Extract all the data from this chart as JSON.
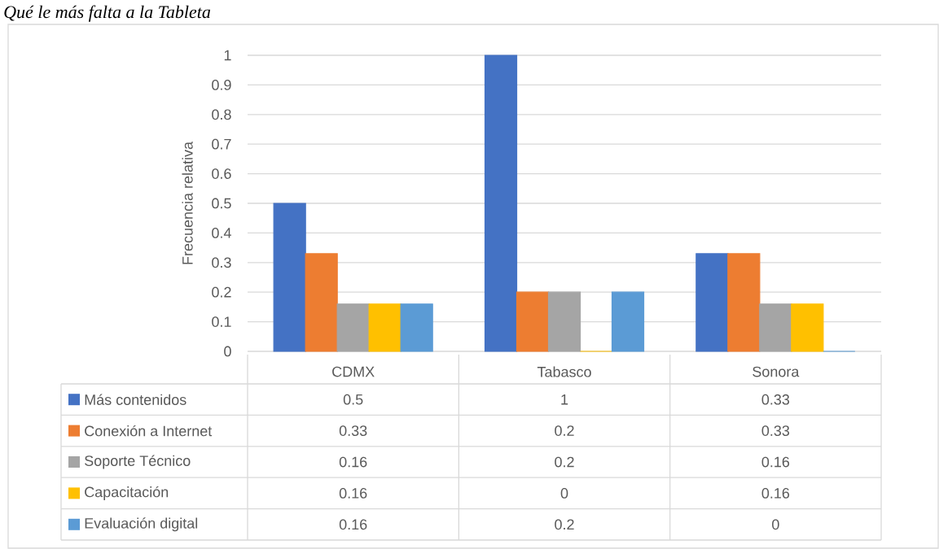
{
  "chart_data": {
    "type": "bar",
    "title": "Qué le más falta a la Tableta",
    "ylabel": "Frecuencia relativa",
    "categories": [
      "CDMX",
      "Tabasco",
      "Sonora"
    ],
    "series": [
      {
        "name": "Más contenidos",
        "color": "#4472c4",
        "values": [
          0.5,
          1,
          0.33
        ]
      },
      {
        "name": "Conexión a Internet",
        "color": "#ed7d31",
        "values": [
          0.33,
          0.2,
          0.33
        ]
      },
      {
        "name": "Soporte Técnico",
        "color": "#a5a5a5",
        "values": [
          0.16,
          0.2,
          0.16
        ]
      },
      {
        "name": "Capacitación",
        "color": "#ffc000",
        "values": [
          0.16,
          0,
          0.16
        ]
      },
      {
        "name": "Evaluación digital",
        "color": "#5b9bd5",
        "values": [
          0.16,
          0.2,
          0
        ]
      }
    ],
    "ylim": [
      0,
      1
    ],
    "yticks": [
      0,
      0.1,
      0.2,
      0.3,
      0.4,
      0.5,
      0.6,
      0.7,
      0.8,
      0.9,
      1
    ],
    "grid": "y",
    "legend": "bottom",
    "data_labels": true
  }
}
